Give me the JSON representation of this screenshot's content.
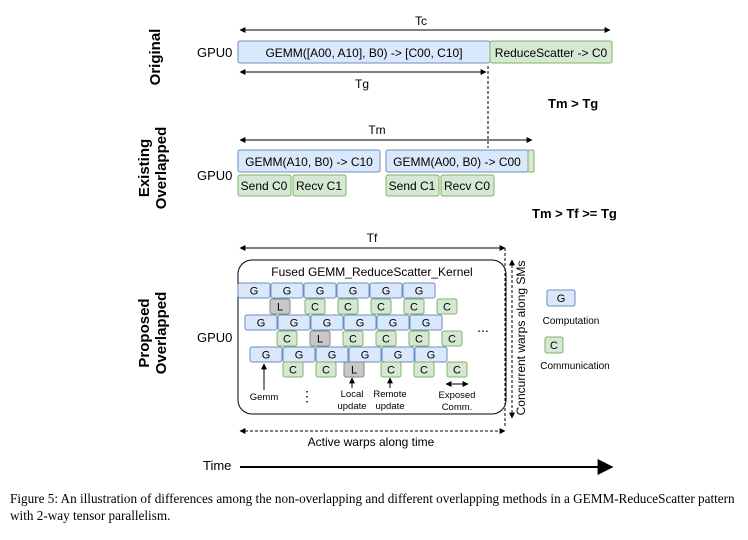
{
  "rows": {
    "original": "Original",
    "existing_line1": "Existing",
    "existing_line2": "Overlapped",
    "proposed_line1": "Proposed",
    "proposed_line2": "Overlapped"
  },
  "gpu_label": "GPU0",
  "original": {
    "tc": "Tc",
    "tg": "Tg",
    "gemm": "GEMM([A00, A10], B0) -> [C00, C10]",
    "reduce_scatter": "ReduceScatter -> C0"
  },
  "relations": {
    "tm_gt_tg": "Tm > Tg",
    "tm_gt_tf_ge_tg": "Tm > Tf >= Tg"
  },
  "existing": {
    "tm": "Tm",
    "gemm1": "GEMM(A10, B0) -> C10",
    "gemm2": "GEMM(A00, B0) -> C00",
    "send0": "Send C0",
    "recv1": "Recv C1",
    "send1": "Send C1",
    "recv0": "Recv C0"
  },
  "proposed": {
    "tf": "Tf",
    "kernel_title": "Fused GEMM_ReduceScatter_Kernel",
    "g": "G",
    "c": "C",
    "l": "L",
    "ellipsis_h": "...",
    "ellipsis_v": "⋮",
    "gemm_label": "Gemm",
    "local_update_1": "Local",
    "local_update_2": "update",
    "remote_update_1": "Remote",
    "remote_update_2": "update",
    "exposed_1": "Exposed",
    "exposed_2": "Comm.",
    "vertical_axis": "Concurrent warps along SMs",
    "horizontal_axis": "Active warps along time"
  },
  "legend": {
    "g": "G",
    "computation": "Computation",
    "c": "C",
    "communication": "Communication"
  },
  "time_label": "Time",
  "caption": "Figure 5: An illustration of differences among the non-overlapping and different overlapping methods in a GEMM-ReduceScatter pattern with 2-way tensor parallelism.",
  "colors": {
    "computation_fill": "#dae8fc",
    "computation_stroke": "#6c8ebf",
    "communication_fill": "#d5e8d4",
    "communication_stroke": "#82b366",
    "local_fill": "#c8c8c8",
    "local_stroke": "#888888"
  }
}
